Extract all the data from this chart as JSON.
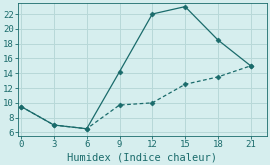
{
  "xlabel": "Humidex (Indice chaleur)",
  "bg_color": "#d6eeee",
  "line_color": "#1a6b6b",
  "line1_x": [
    0,
    3,
    6,
    9,
    12,
    15,
    18,
    21
  ],
  "line1_y": [
    9.5,
    7.0,
    6.5,
    14.2,
    22.0,
    23.0,
    18.5,
    15.0
  ],
  "line2_x": [
    0,
    3,
    6,
    9,
    12,
    15,
    18,
    21
  ],
  "line2_y": [
    9.5,
    7.0,
    6.5,
    9.7,
    10.0,
    12.5,
    13.5,
    15.0
  ],
  "xlim": [
    -0.3,
    22.5
  ],
  "ylim": [
    5.5,
    23.5
  ],
  "xticks": [
    0,
    3,
    6,
    9,
    12,
    15,
    18,
    21
  ],
  "yticks": [
    6,
    8,
    10,
    12,
    14,
    16,
    18,
    20,
    22
  ],
  "grid_color": "#b8d8d8",
  "tick_fontsize": 6.5,
  "label_fontsize": 7.5,
  "markersize": 2.5,
  "linewidth": 0.9
}
